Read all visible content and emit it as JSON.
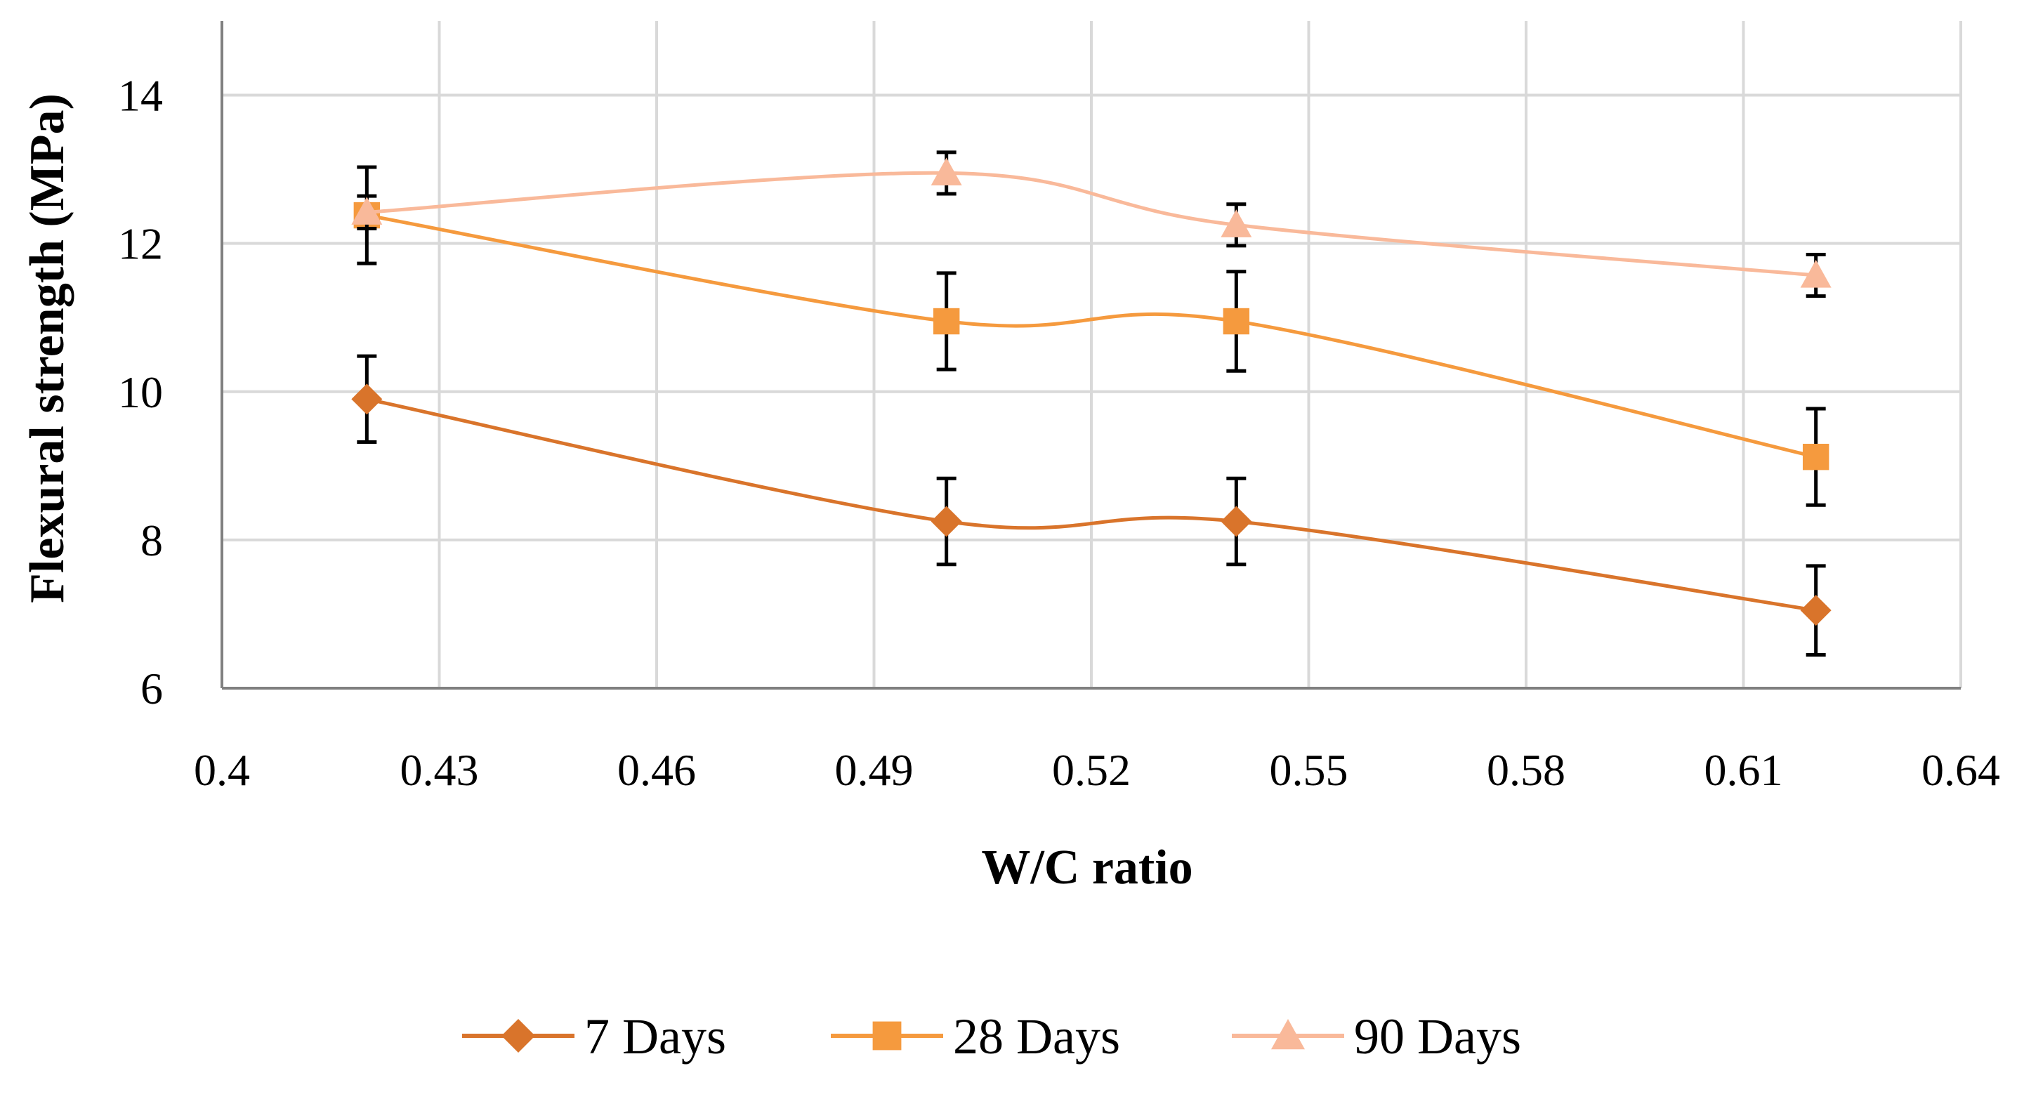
{
  "chart_data": {
    "type": "line",
    "title": "",
    "xlabel": "W/C ratio",
    "ylabel": "Flexural strength (MPa)",
    "xlim": [
      0.4,
      0.64
    ],
    "ylim": [
      6,
      15
    ],
    "x_ticks": [
      0.4,
      0.43,
      0.46,
      0.49,
      0.52,
      0.55,
      0.58,
      0.61,
      0.64
    ],
    "x_tick_labels": [
      "0.4",
      "0.43",
      "0.46",
      "0.49",
      "0.52",
      "0.55",
      "0.58",
      "0.61",
      "0.64"
    ],
    "y_ticks": [
      6,
      8,
      10,
      12,
      14
    ],
    "y_tick_labels": [
      "6",
      "8",
      "10",
      "12",
      "14"
    ],
    "grid": true,
    "legend_position": "bottom",
    "smooth": true,
    "x": [
      0.42,
      0.5,
      0.54,
      0.62
    ],
    "series": [
      {
        "name": "7 Days",
        "marker": "diamond",
        "color": "#D9742B",
        "values": [
          9.9,
          8.25,
          8.25,
          7.05
        ],
        "error": [
          0.58,
          0.58,
          0.58,
          0.6
        ]
      },
      {
        "name": "28 Days",
        "marker": "square",
        "color": "#F59A3E",
        "values": [
          12.38,
          10.95,
          10.95,
          9.12
        ],
        "error": [
          0.65,
          0.65,
          0.67,
          0.65
        ]
      },
      {
        "name": "90 Days",
        "marker": "triangle",
        "color": "#F9B99A",
        "values": [
          12.42,
          12.95,
          12.25,
          11.57
        ],
        "error": [
          0.22,
          0.28,
          0.28,
          0.28
        ]
      }
    ]
  }
}
